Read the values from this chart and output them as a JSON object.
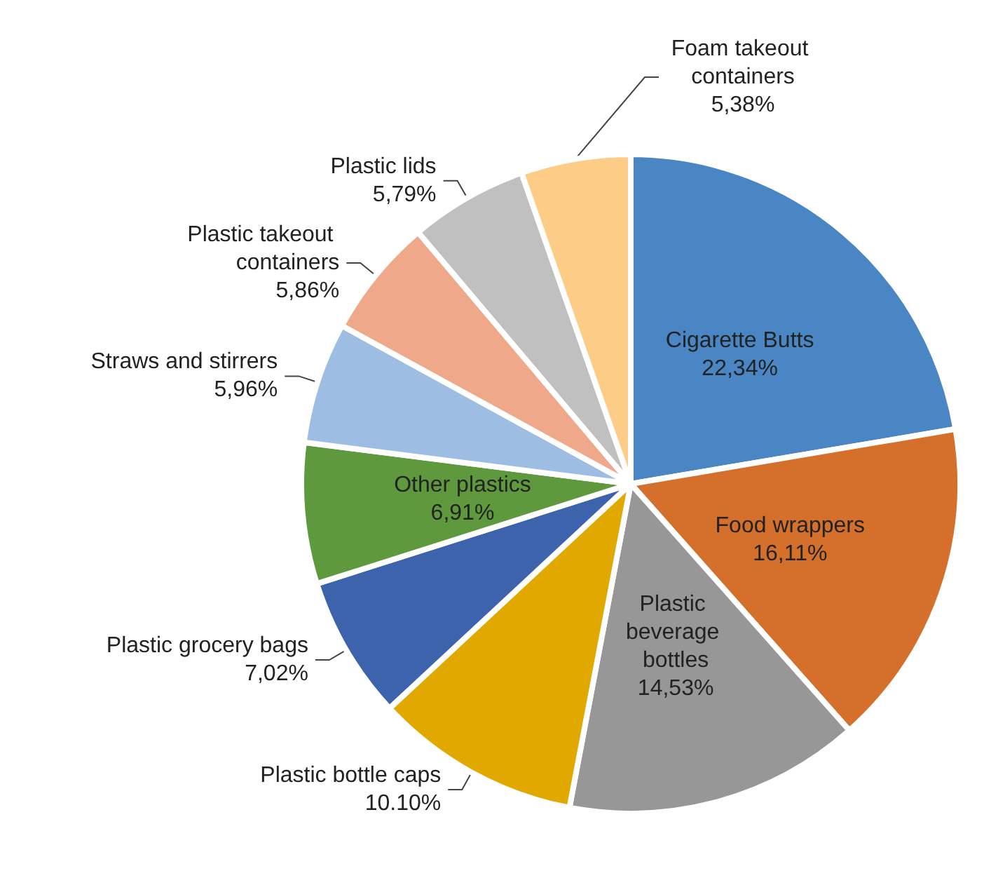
{
  "chart_data": {
    "type": "pie",
    "categories": [
      "Cigarette Butts",
      "Food wrappers",
      "Plastic beverage bottles",
      "Plastic bottle caps",
      "Plastic grocery bags",
      "Other plastics",
      "Straws and stirrers",
      "Plastic takeout containers",
      "Plastic lids",
      "Foam takeout containers"
    ],
    "values": [
      22.34,
      16.11,
      14.53,
      10.1,
      7.02,
      6.91,
      5.96,
      5.86,
      5.79,
      5.38
    ],
    "value_labels": [
      "22,34%",
      "16,11%",
      "14,53%",
      "10.10%",
      "7,02%",
      "6,91%",
      "5,96%",
      "5,86%",
      "5,79%",
      "5,38%"
    ],
    "colors": [
      "#4a86c4",
      "#d4702b",
      "#979797",
      "#e1a900",
      "#3d63ad",
      "#5f993d",
      "#9dbde3",
      "#efa88a",
      "#c0c0c0",
      "#fdcd88"
    ]
  }
}
